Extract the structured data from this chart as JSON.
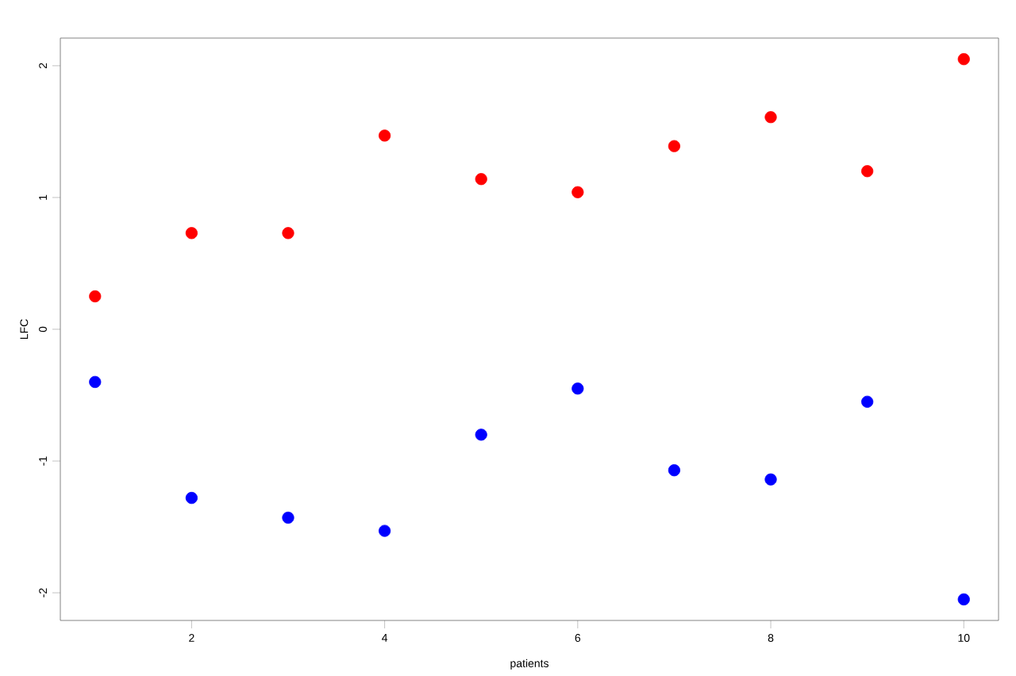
{
  "chart_data": {
    "type": "scatter",
    "xlabel": "patients",
    "ylabel": "LFC",
    "x": [
      1,
      2,
      3,
      4,
      5,
      6,
      7,
      8,
      9,
      10
    ],
    "series": [
      {
        "color": "#ff0000",
        "values": [
          0.25,
          0.73,
          0.73,
          1.47,
          1.14,
          1.04,
          1.39,
          1.61,
          1.2,
          2.05
        ]
      },
      {
        "color": "#0000ff",
        "values": [
          -0.4,
          -1.28,
          -1.43,
          -1.53,
          -0.8,
          -0.45,
          -1.07,
          -1.14,
          -0.55,
          -2.05
        ]
      }
    ],
    "xlim": [
      0.64,
      10.36
    ],
    "ylim": [
      -2.21,
      2.21
    ],
    "xticks": [
      2,
      4,
      6,
      8,
      10
    ],
    "yticks": [
      -2,
      -1,
      0,
      1,
      2
    ],
    "marker": "circle"
  }
}
